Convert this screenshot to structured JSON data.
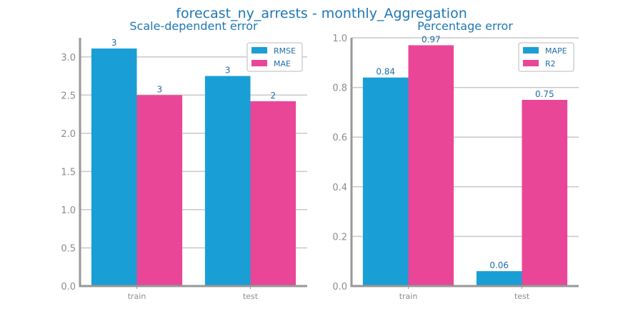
{
  "suptitle": "forecast_ny_arrests - monthly_Aggregation",
  "colors": {
    "primary": "#1a9ed6",
    "secondary": "#ea4698",
    "text": "#1f6fa8",
    "grid": "#c8c8c8",
    "axis": "#979797"
  },
  "chart_data": [
    {
      "type": "bar",
      "title": "Scale-dependent error",
      "categories": [
        "train",
        "test"
      ],
      "series": [
        {
          "name": "RMSE",
          "values": [
            3.11,
            2.75
          ],
          "labels": [
            "3",
            "3"
          ]
        },
        {
          "name": "MAE",
          "values": [
            2.5,
            2.42
          ],
          "labels": [
            "3",
            "2"
          ]
        }
      ],
      "ylim": [
        0,
        3.25
      ],
      "yticks": [
        "0.0",
        "0.5",
        "1.0",
        "1.5",
        "2.0",
        "2.5",
        "3.0"
      ],
      "ytick_values": [
        0,
        0.5,
        1.0,
        1.5,
        2.0,
        2.5,
        3.0
      ],
      "grid": "horizontal",
      "legend": "top-right"
    },
    {
      "type": "bar",
      "title": "Percentage error",
      "categories": [
        "train",
        "test"
      ],
      "series": [
        {
          "name": "MAPE",
          "values": [
            0.84,
            0.06
          ],
          "labels": [
            "0.84",
            "0.06"
          ]
        },
        {
          "name": "R2",
          "values": [
            0.97,
            0.75
          ],
          "labels": [
            "0.97",
            "0.75"
          ]
        }
      ],
      "ylim": [
        0,
        1.0
      ],
      "yticks": [
        "0.0",
        "0.2",
        "0.4",
        "0.6",
        "0.8",
        "1.0"
      ],
      "ytick_values": [
        0,
        0.2,
        0.4,
        0.6,
        0.8,
        1.0
      ],
      "grid": "horizontal",
      "legend": "top-right"
    }
  ]
}
